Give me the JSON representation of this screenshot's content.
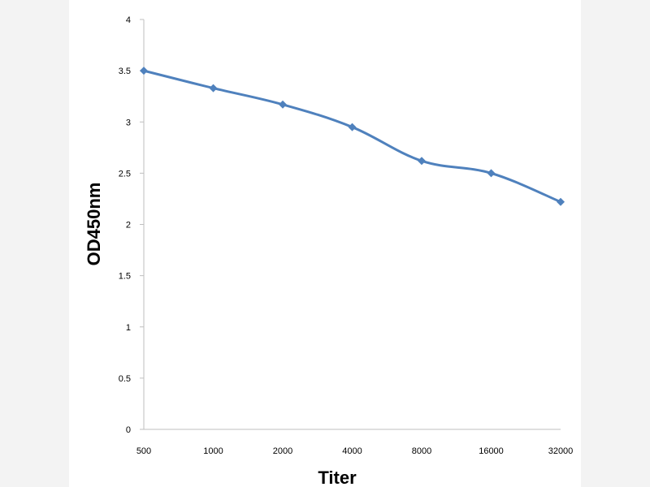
{
  "chart_data": {
    "type": "line",
    "title": "",
    "xlabel": "Titer",
    "ylabel": "OD450nm",
    "categories": [
      "500",
      "1000",
      "2000",
      "4000",
      "8000",
      "16000",
      "32000"
    ],
    "series": [
      {
        "values": [
          3.5,
          3.33,
          3.17,
          2.95,
          2.62,
          2.5,
          2.22
        ]
      }
    ],
    "ylim": [
      0,
      4
    ],
    "yticks": [
      "0",
      "0.5",
      "1",
      "1.5",
      "2",
      "2.5",
      "3",
      "3.5",
      "4"
    ],
    "line_color": "#4f81bd",
    "marker": "diamond",
    "grid": false,
    "smooth": true
  }
}
